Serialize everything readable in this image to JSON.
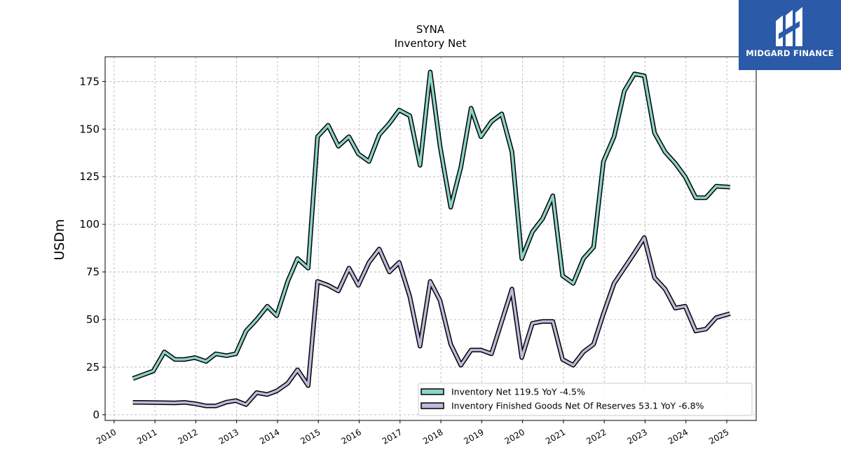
{
  "brand": {
    "name": "MIDGARD FINANCE",
    "bg_color": "#2a5aa8"
  },
  "chart_data": {
    "type": "line",
    "title": "SYNA",
    "subtitle": "Inventory Net",
    "ylabel": "USDm",
    "xlabel": "",
    "ylim": [
      -3,
      188
    ],
    "xlim": [
      2009.78,
      2025.72
    ],
    "yticks": [
      0,
      25,
      50,
      75,
      100,
      125,
      150,
      175
    ],
    "xticks": [
      "2010",
      "2011",
      "2012",
      "2013",
      "2014",
      "2015",
      "2016",
      "2017",
      "2018",
      "2019",
      "2020",
      "2021",
      "2022",
      "2023",
      "2024",
      "2025"
    ],
    "grid": true,
    "legend_position": "bottom-right",
    "series": [
      {
        "name": "Inventory Net",
        "legend_label": "Inventory Net  119.5 YoY -4.5%",
        "color": "#8dd3c7",
        "points": [
          [
            2010.46,
            19
          ],
          [
            2010.71,
            21
          ],
          [
            2010.96,
            23
          ],
          [
            2011.23,
            33
          ],
          [
            2011.49,
            29
          ],
          [
            2011.72,
            29
          ],
          [
            2011.98,
            30
          ],
          [
            2012.25,
            28
          ],
          [
            2012.49,
            32
          ],
          [
            2012.75,
            31
          ],
          [
            2012.98,
            32
          ],
          [
            2013.23,
            44
          ],
          [
            2013.49,
            50
          ],
          [
            2013.75,
            57
          ],
          [
            2013.98,
            52
          ],
          [
            2014.25,
            70
          ],
          [
            2014.49,
            82
          ],
          [
            2014.75,
            77
          ],
          [
            2014.98,
            146
          ],
          [
            2015.24,
            152
          ],
          [
            2015.49,
            141
          ],
          [
            2015.75,
            146
          ],
          [
            2015.98,
            137
          ],
          [
            2016.24,
            133
          ],
          [
            2016.49,
            147
          ],
          [
            2016.74,
            153
          ],
          [
            2016.98,
            160
          ],
          [
            2017.24,
            157
          ],
          [
            2017.49,
            131
          ],
          [
            2017.74,
            180
          ],
          [
            2017.98,
            141
          ],
          [
            2018.24,
            109
          ],
          [
            2018.49,
            130
          ],
          [
            2018.74,
            161
          ],
          [
            2018.98,
            146
          ],
          [
            2019.24,
            154
          ],
          [
            2019.49,
            158
          ],
          [
            2019.74,
            138
          ],
          [
            2019.98,
            82
          ],
          [
            2020.24,
            96
          ],
          [
            2020.49,
            103
          ],
          [
            2020.74,
            115
          ],
          [
            2020.98,
            73
          ],
          [
            2021.24,
            69
          ],
          [
            2021.49,
            82
          ],
          [
            2021.74,
            88
          ],
          [
            2021.98,
            133
          ],
          [
            2022.24,
            146
          ],
          [
            2022.49,
            170
          ],
          [
            2022.74,
            179
          ],
          [
            2022.98,
            178
          ],
          [
            2023.23,
            148
          ],
          [
            2023.49,
            138
          ],
          [
            2023.74,
            132
          ],
          [
            2023.98,
            125
          ],
          [
            2024.24,
            114
          ],
          [
            2024.49,
            114
          ],
          [
            2024.74,
            120
          ],
          [
            2025.08,
            119.5
          ]
        ]
      },
      {
        "name": "Inventory Finished Goods Net Of Reserves",
        "legend_label": "Inventory Finished Goods Net Of Reserves  53.1 YoY -6.8%",
        "color": "#bebada",
        "points": [
          [
            2010.46,
            6.5
          ],
          [
            2010.71,
            6.5
          ],
          [
            2010.96,
            6.4
          ],
          [
            2011.23,
            6.3
          ],
          [
            2011.49,
            6.2
          ],
          [
            2011.72,
            6.5
          ],
          [
            2011.98,
            5.8
          ],
          [
            2012.25,
            4.6
          ],
          [
            2012.49,
            4.6
          ],
          [
            2012.75,
            6.6
          ],
          [
            2012.98,
            7.4
          ],
          [
            2013.23,
            5.3
          ],
          [
            2013.49,
            11.6
          ],
          [
            2013.75,
            10.6
          ],
          [
            2013.98,
            12.5
          ],
          [
            2014.25,
            16.5
          ],
          [
            2014.49,
            23.6
          ],
          [
            2014.75,
            15.3
          ],
          [
            2014.98,
            70
          ],
          [
            2015.24,
            68
          ],
          [
            2015.49,
            65
          ],
          [
            2015.75,
            77
          ],
          [
            2015.98,
            68
          ],
          [
            2016.24,
            80
          ],
          [
            2016.49,
            87
          ],
          [
            2016.74,
            75
          ],
          [
            2016.98,
            80
          ],
          [
            2017.24,
            62
          ],
          [
            2017.49,
            36
          ],
          [
            2017.74,
            70
          ],
          [
            2017.98,
            60
          ],
          [
            2018.24,
            37
          ],
          [
            2018.49,
            26
          ],
          [
            2018.74,
            34
          ],
          [
            2018.98,
            34
          ],
          [
            2019.24,
            32
          ],
          [
            2019.49,
            49
          ],
          [
            2019.74,
            66
          ],
          [
            2019.98,
            30
          ],
          [
            2020.24,
            48
          ],
          [
            2020.49,
            49
          ],
          [
            2020.74,
            49
          ],
          [
            2020.98,
            29
          ],
          [
            2021.24,
            26
          ],
          [
            2021.49,
            33
          ],
          [
            2021.74,
            37
          ],
          [
            2021.98,
            53
          ],
          [
            2022.24,
            69
          ],
          [
            2022.49,
            77
          ],
          [
            2022.74,
            85
          ],
          [
            2022.98,
            93
          ],
          [
            2023.23,
            72
          ],
          [
            2023.49,
            66
          ],
          [
            2023.74,
            56
          ],
          [
            2023.98,
            57
          ],
          [
            2024.24,
            44
          ],
          [
            2024.49,
            45
          ],
          [
            2024.74,
            51
          ],
          [
            2025.08,
            53.1
          ]
        ]
      }
    ]
  }
}
